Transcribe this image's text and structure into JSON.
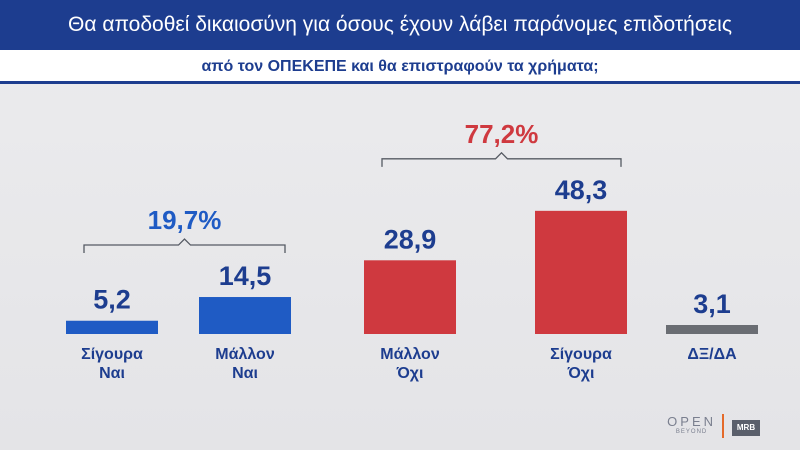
{
  "header": {
    "title": "Θα αποδοθεί δικαιοσύνη για όσους έχουν λάβει παράνομες επιδοτήσεις",
    "subtitle": "από τον ΟΠΕΚΕΠΕ και θα επιστραφούν τα χρήματα;"
  },
  "colors": {
    "yes": "#1f5bc4",
    "no": "#cf393f",
    "dkna": "#6a6d73",
    "header_blue": "#1d3d8f"
  },
  "chart_data": {
    "type": "bar",
    "categories": [
      "Σίγουρα\nΝαι",
      "Μάλλον\nΝαι",
      "Μάλλον\nΌχι",
      "Σίγουρα\nΌχι",
      "ΔΞ/ΔΑ"
    ],
    "values": [
      5.2,
      14.5,
      28.9,
      48.3,
      3.1
    ],
    "value_labels": [
      "5,2",
      "14,5",
      "28,9",
      "48,3",
      "3,1"
    ],
    "colors": [
      "#1f5bc4",
      "#1f5bc4",
      "#cf393f",
      "#cf393f",
      "#6a6d73"
    ],
    "groups": [
      {
        "label": "19,7%",
        "indices": [
          0,
          1
        ],
        "color": "#1f5bc4"
      },
      {
        "label": "77,2%",
        "indices": [
          2,
          3
        ],
        "color": "#cf393f"
      }
    ],
    "ylim": [
      0,
      50
    ],
    "grid": false,
    "legend": "none"
  },
  "branding": {
    "open": "OPEN",
    "open_sub": "BEYOND",
    "mrb": "MRB"
  }
}
